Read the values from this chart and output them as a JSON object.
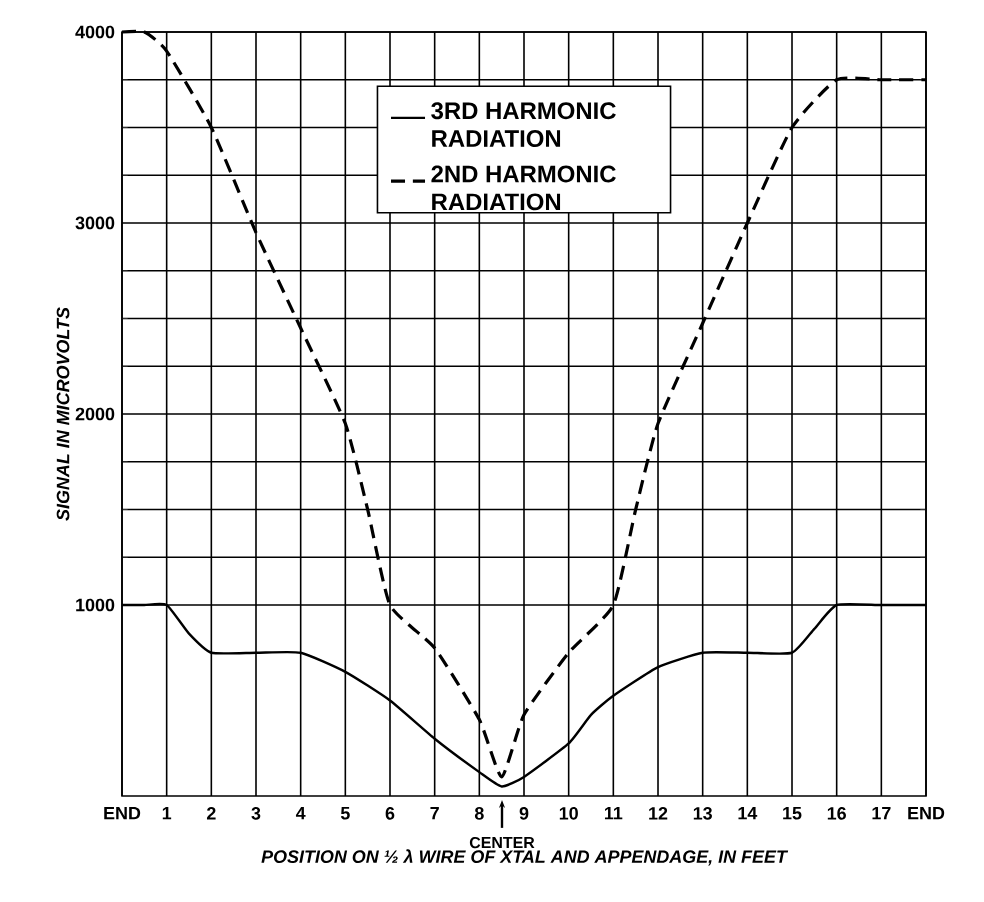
{
  "chart_data": {
    "type": "line",
    "xlabel": "POSITION ON ½ λ WIRE OF XTAL AND APPENDAGE, IN FEET",
    "ylabel": "SIGNAL IN MICROVOLTS",
    "xlim": [
      0,
      18
    ],
    "ylim": [
      0,
      4000
    ],
    "xticks": [
      {
        "value": 0,
        "label": "END"
      },
      1,
      2,
      3,
      4,
      5,
      6,
      7,
      8,
      9,
      10,
      11,
      12,
      13,
      14,
      15,
      16,
      17,
      {
        "value": 18,
        "label": "END"
      }
    ],
    "yticks": [
      1000,
      2000,
      3000,
      4000
    ],
    "grid": true,
    "legend": "top",
    "marker": "none",
    "annotations": [
      "CENTER"
    ],
    "series": [
      {
        "name": "3RD HARMONIC RADIATION",
        "color": "#000000",
        "line_style": "solid",
        "x": [
          0,
          0.5,
          1,
          1.5,
          2,
          3,
          4,
          5,
          6,
          7,
          8,
          8.5,
          9,
          10,
          10.5,
          11,
          12,
          13,
          14,
          15,
          15.5,
          16,
          17,
          18
        ],
        "values": [
          1000,
          1000,
          1000,
          850,
          750,
          750,
          750,
          650,
          500,
          300,
          125,
          50,
          100,
          275,
          425,
          525,
          675,
          750,
          750,
          750,
          875,
          1000,
          1000,
          1000
        ]
      },
      {
        "name": "2ND HARMONIC RADIATION",
        "color": "#000000",
        "line_style": "dashed",
        "x": [
          0,
          0.5,
          1,
          2,
          3,
          4,
          5,
          5.5,
          6,
          7,
          8,
          8.5,
          9,
          10,
          11,
          11.5,
          12,
          13,
          14,
          15,
          16,
          17,
          18
        ],
        "values": [
          4000,
          4000,
          3900,
          3500,
          2950,
          2450,
          1950,
          1500,
          1000,
          775,
          400,
          100,
          425,
          750,
          1000,
          1500,
          1950,
          2475,
          3000,
          3500,
          3750,
          3750,
          3750
        ]
      }
    ]
  }
}
